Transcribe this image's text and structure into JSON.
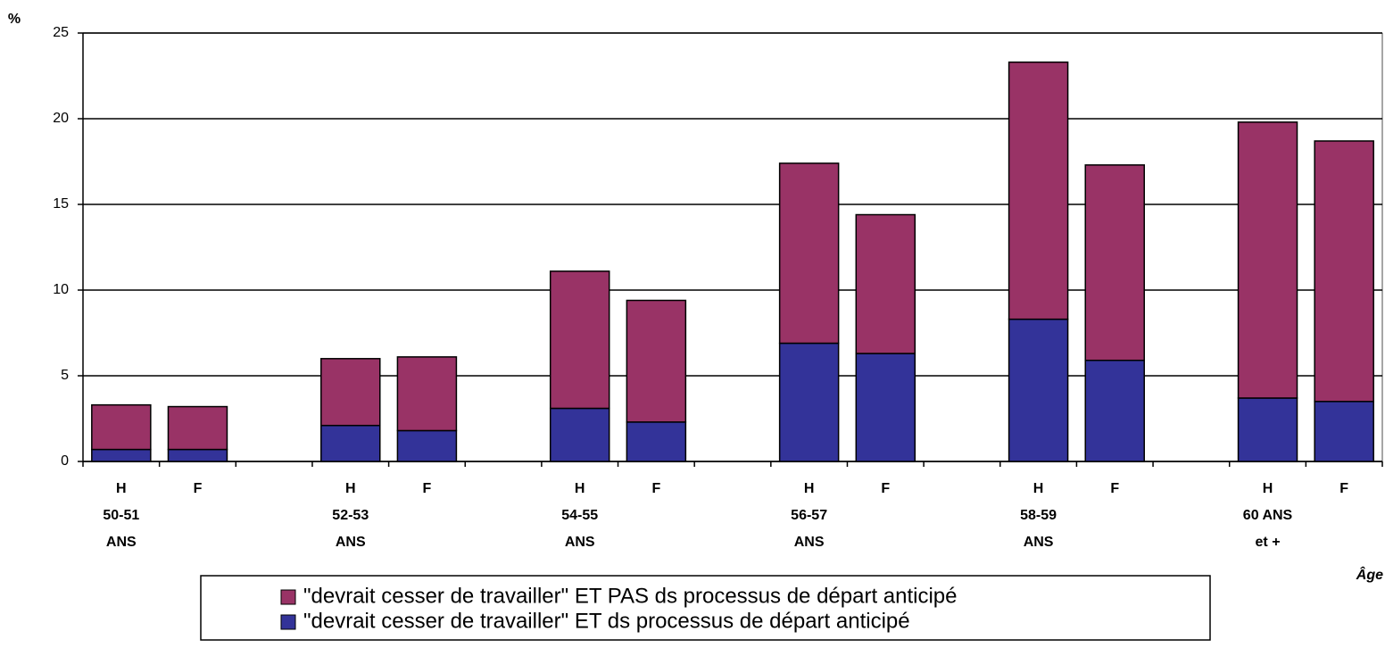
{
  "chart_data": {
    "type": "stacked_bar",
    "y_label": "%",
    "x_label": "Âge",
    "categories": [
      "H",
      "F",
      null,
      "H",
      "F",
      null,
      "H",
      "F",
      null,
      "H",
      "F",
      null,
      "H",
      "F",
      null,
      "H",
      "F"
    ],
    "groups": [
      [
        "50-51",
        "ANS"
      ],
      [
        "52-53",
        "ANS"
      ],
      [
        "54-55",
        "ANS"
      ],
      [
        "56-57",
        "ANS"
      ],
      [
        "58-59",
        "ANS"
      ],
      [
        "60 ANS",
        "et +"
      ]
    ],
    "series": [
      {
        "name": "\"devrait cesser de travailler\" ET ds processus de départ anticipé",
        "color": "#333399",
        "values": [
          0.7,
          0.7,
          null,
          2.1,
          1.8,
          null,
          3.1,
          2.3,
          null,
          6.9,
          6.3,
          null,
          8.3,
          5.9,
          null,
          3.7,
          3.5
        ]
      },
      {
        "name": "\"devrait cesser de travailler\" ET PAS ds processus de départ anticipé",
        "color": "#993366",
        "values": [
          2.6,
          2.5,
          null,
          3.9,
          4.3,
          null,
          8.0,
          7.1,
          null,
          10.5,
          8.1,
          null,
          15.0,
          11.4,
          null,
          16.1,
          15.2
        ]
      }
    ],
    "ylim": [
      0,
      25
    ],
    "yticks": [
      0,
      5,
      10,
      15,
      20,
      25
    ],
    "grid": true
  }
}
